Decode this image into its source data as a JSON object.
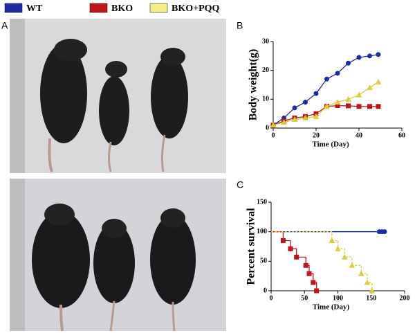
{
  "panels": [
    "A",
    "B",
    "C"
  ],
  "chart_data": [
    {
      "type": "line",
      "xlabel": "Time (Day)",
      "ylabel": "Body weight(g)",
      "xlim": [
        0,
        60
      ],
      "xticks": [
        0,
        20,
        40,
        60
      ],
      "ylim": [
        0,
        30
      ],
      "yticks": [
        0,
        10,
        20,
        30
      ],
      "series": [
        {
          "name": "WT",
          "color": "#1f2aa6",
          "marker": "circle",
          "x": [
            0,
            5,
            10,
            15,
            20,
            25,
            30,
            35,
            40,
            45,
            49
          ],
          "values": [
            1,
            3.5,
            7,
            9,
            12,
            17,
            19,
            22.5,
            24.5,
            25,
            25.5
          ]
        },
        {
          "name": "BKO",
          "color": "#c0151b",
          "marker": "square",
          "x": [
            0,
            5,
            10,
            15,
            20,
            25,
            30,
            35,
            40,
            45,
            49
          ],
          "values": [
            1,
            2.5,
            3.5,
            4,
            5,
            7.5,
            7.8,
            7.7,
            7.5,
            7.5,
            7.5
          ]
        },
        {
          "name": "BKO+PQQ",
          "color": "#d9cf3a",
          "marker": "triangle",
          "x": [
            0,
            5,
            10,
            15,
            20,
            25,
            30,
            35,
            40,
            45,
            49
          ],
          "values": [
            1,
            2,
            3,
            3.5,
            4,
            7.5,
            9,
            10,
            11.5,
            14,
            16
          ]
        }
      ]
    },
    {
      "type": "step",
      "xlabel": "Time (Day)",
      "ylabel": "Percent survival",
      "xlim": [
        0,
        200
      ],
      "xticks": [
        0,
        50,
        100,
        150,
        200
      ],
      "ylim": [
        0,
        150
      ],
      "yticks": [
        0,
        50,
        100,
        150
      ],
      "series": [
        {
          "name": "WT",
          "color": "#1f2aa6",
          "marker": "circle",
          "x": [
            0,
            162,
            166,
            170
          ],
          "values": [
            100,
            100,
            100,
            100
          ]
        },
        {
          "name": "BKO",
          "color": "#c0151b",
          "marker": "square",
          "x": [
            0,
            18,
            29,
            38,
            52,
            57,
            63,
            68
          ],
          "values": [
            100,
            85,
            71,
            57,
            43,
            29,
            14,
            0
          ]
        },
        {
          "name": "BKO+PQQ",
          "color": "#d9cf3a",
          "marker": "triangle",
          "dashed": true,
          "x": [
            0,
            91,
            100,
            110,
            121,
            135,
            144,
            151
          ],
          "values": [
            100,
            85,
            71,
            57,
            43,
            29,
            14,
            0
          ]
        }
      ]
    }
  ]
}
